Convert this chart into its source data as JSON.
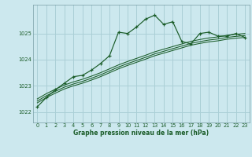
{
  "title": "Graphe pression niveau de la mer (hPa)",
  "bg_color": "#cce8ee",
  "grid_color": "#aacfd6",
  "line_color": "#1a5c28",
  "x_ticks": [
    0,
    1,
    2,
    3,
    4,
    5,
    6,
    7,
    8,
    9,
    10,
    11,
    12,
    13,
    14,
    15,
    16,
    17,
    18,
    19,
    20,
    21,
    22,
    23
  ],
  "y_ticks": [
    1022,
    1023,
    1024,
    1025
  ],
  "ylim": [
    1021.6,
    1026.1
  ],
  "xlim": [
    -0.5,
    23.5
  ],
  "line1_x": [
    0,
    1,
    2,
    3,
    4,
    5,
    6,
    7,
    8,
    9,
    10,
    11,
    12,
    13,
    14,
    15,
    16,
    17,
    18,
    19,
    20,
    21,
    22,
    23
  ],
  "line1_y": [
    1022.2,
    1022.55,
    1022.85,
    1023.1,
    1023.35,
    1023.4,
    1023.6,
    1023.85,
    1024.15,
    1025.05,
    1025.0,
    1025.25,
    1025.55,
    1025.7,
    1025.35,
    1025.45,
    1024.7,
    1024.6,
    1025.0,
    1025.05,
    1024.9,
    1024.9,
    1025.0,
    1024.85
  ],
  "line2_y": [
    1022.35,
    1022.55,
    1022.72,
    1022.88,
    1023.0,
    1023.1,
    1023.22,
    1023.35,
    1023.5,
    1023.65,
    1023.78,
    1023.9,
    1024.02,
    1024.15,
    1024.25,
    1024.35,
    1024.45,
    1024.55,
    1024.62,
    1024.68,
    1024.72,
    1024.78,
    1024.82,
    1024.85
  ],
  "line3_y": [
    1022.42,
    1022.62,
    1022.79,
    1022.95,
    1023.07,
    1023.17,
    1023.29,
    1023.42,
    1023.57,
    1023.72,
    1023.85,
    1023.97,
    1024.09,
    1024.22,
    1024.32,
    1024.42,
    1024.52,
    1024.62,
    1024.69,
    1024.75,
    1024.79,
    1024.85,
    1024.89,
    1024.92
  ],
  "line4_y": [
    1022.5,
    1022.7,
    1022.87,
    1023.03,
    1023.15,
    1023.25,
    1023.37,
    1023.5,
    1023.65,
    1023.8,
    1023.93,
    1024.05,
    1024.17,
    1024.3,
    1024.4,
    1024.5,
    1024.6,
    1024.7,
    1024.77,
    1024.83,
    1024.87,
    1024.93,
    1024.97,
    1025.0
  ]
}
